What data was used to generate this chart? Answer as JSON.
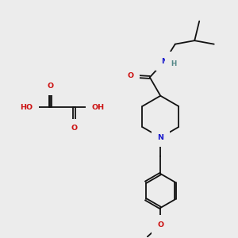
{
  "background_color": "#ececec",
  "bond_color": "#111111",
  "bond_width": 1.3,
  "atom_colors": {
    "C": "#111111",
    "N": "#1a1acc",
    "O": "#cc1111",
    "H": "#558888"
  },
  "font_size": 6.8,
  "figsize": [
    3.0,
    3.0
  ],
  "dpi": 100
}
